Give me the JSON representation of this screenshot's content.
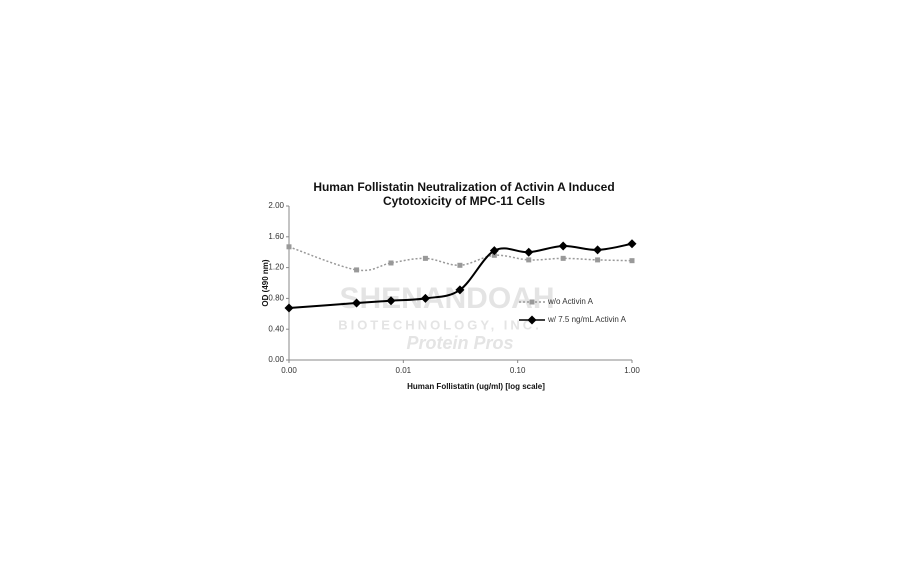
{
  "chart_data": {
    "type": "line",
    "title": [
      "Human Follistatin Neutralization of Activin A Induced",
      "Cytotoxicity of MPC-11 Cells"
    ],
    "x_label": "Human Follistatin (ug/ml) [log scale]",
    "y_label": "OD (490 nm)",
    "x": [
      0.001,
      0.0039,
      0.0078,
      0.0156,
      0.03125,
      0.0625,
      0.125,
      0.25,
      0.5,
      1
    ],
    "series": [
      {
        "name": "w/o Activin A",
        "color": "#999999",
        "style": "dotted",
        "marker": "square",
        "values": [
          1.47,
          1.17,
          1.26,
          1.32,
          1.23,
          1.36,
          1.3,
          1.32,
          1.3,
          1.29
        ]
      },
      {
        "name": "w/ 7.5 ng/mL Activin A",
        "color": "#000000",
        "style": "solid",
        "marker": "diamond",
        "values": [
          0.675,
          0.74,
          0.77,
          0.8,
          0.91,
          1.42,
          1.4,
          1.48,
          1.43,
          1.51
        ]
      }
    ],
    "xscale": "log",
    "xlim": [
      0.001,
      1
    ],
    "xticks": [
      {
        "value": 0.001,
        "label": "0.00"
      },
      {
        "value": 0.01,
        "label": "0.01"
      },
      {
        "value": 0.1,
        "label": "0.10"
      },
      {
        "value": 1,
        "label": "1.00"
      }
    ],
    "ylim": [
      0,
      2
    ],
    "yticks": [
      {
        "value": 0,
        "label": "0.00"
      },
      {
        "value": 0.4,
        "label": "0.40"
      },
      {
        "value": 0.8,
        "label": "0.80"
      },
      {
        "value": 1.2,
        "label": "1.20"
      },
      {
        "value": 1.6,
        "label": "1.60"
      },
      {
        "value": 2,
        "label": "2.00"
      }
    ],
    "grid": false,
    "legend": "right",
    "watermark": [
      "SHENANDOAH",
      "BIOTECHNOLOGY, INC.",
      "Protein Pros"
    ]
  }
}
